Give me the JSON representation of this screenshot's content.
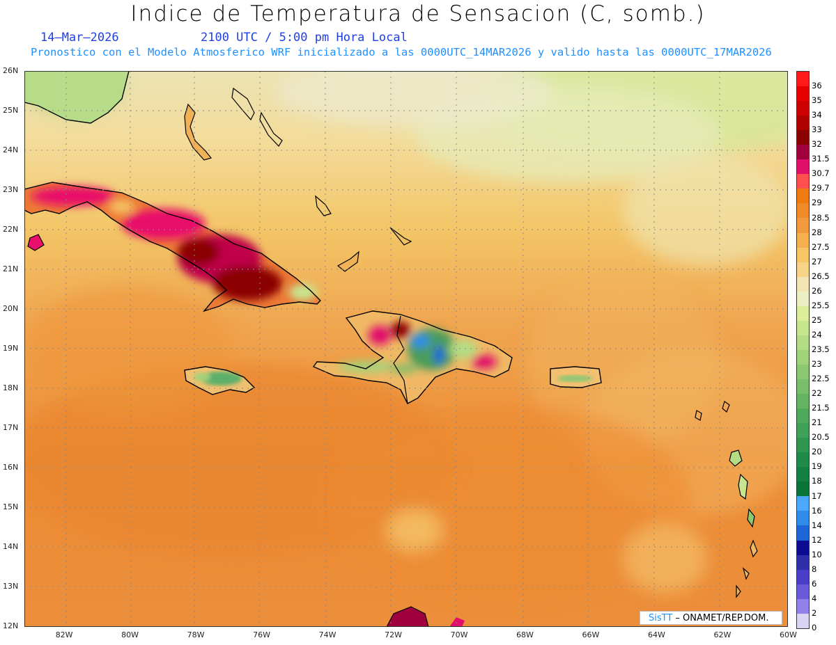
{
  "header": {
    "title": "Indice de Temperatura de Sensacion (C, somb.)",
    "date": "14–Mar–2026",
    "time": "2100 UTC / 5:00 pm Hora Local",
    "forecast": "Pronostico con el Modelo Atmosferico WRF inicializado a las 0000UTC_14MAR2026 y valido hasta las  0000UTC_17MAR2026"
  },
  "axes": {
    "lon_labels": [
      "82W",
      "80W",
      "78W",
      "76W",
      "74W",
      "72W",
      "70W",
      "68W",
      "66W",
      "64W",
      "62W",
      "60W"
    ],
    "lon_values": [
      -82,
      -80,
      -78,
      -76,
      -74,
      -72,
      -70,
      -68,
      -66,
      -64,
      -62,
      -60
    ],
    "lat_labels": [
      "26N",
      "25N",
      "24N",
      "23N",
      "22N",
      "21N",
      "20N",
      "19N",
      "18N",
      "17N",
      "16N",
      "15N",
      "14N",
      "13N",
      "12N"
    ],
    "lat_values": [
      26,
      25,
      24,
      23,
      22,
      21,
      20,
      19,
      18,
      17,
      16,
      15,
      14,
      13,
      12
    ],
    "lon_range": [
      -83.2,
      -60
    ],
    "lat_range": [
      12,
      26
    ]
  },
  "colorbar": {
    "labels": [
      "36",
      "35",
      "34",
      "33",
      "32",
      "31.5",
      "30.7",
      "29.7",
      "29",
      "28.5",
      "28",
      "27.5",
      "27",
      "26.5",
      "26",
      "25.5",
      "25",
      "24",
      "23.5",
      "23",
      "22.5",
      "22",
      "21.5",
      "21",
      "20.5",
      "20",
      "19",
      "18",
      "17",
      "16",
      "14",
      "12",
      "10",
      "8",
      "6",
      "4",
      "2",
      "0"
    ],
    "colors": [
      "#ff1a1a",
      "#e60000",
      "#cc0000",
      "#b00000",
      "#8b0000",
      "#a0003c",
      "#e0106a",
      "#ff5050",
      "#ee7a10",
      "#f08a28",
      "#f29a40",
      "#f5b050",
      "#f7c466",
      "#f8d488",
      "#f3e6b4",
      "#ecefc4",
      "#dcee9c",
      "#c8e690",
      "#b4dc84",
      "#a0d27a",
      "#8cc872",
      "#78be6a",
      "#64b462",
      "#50aa5c",
      "#40a058",
      "#2e9650",
      "#1e8c48",
      "#128040",
      "#0a7438",
      "#4aa8ff",
      "#2e8ce8",
      "#1c66d8",
      "#0c0c90",
      "#2e2ea8",
      "#4a3ec8",
      "#6a5ad8",
      "#9080ea",
      "#d8d4f4"
    ]
  },
  "credit": {
    "brand": "SisTT",
    "org": " – ONAMET/REP.DOM."
  }
}
